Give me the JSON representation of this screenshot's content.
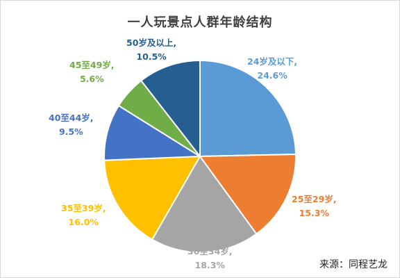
{
  "chart_data": {
    "type": "pie",
    "title": "一人玩景点人群年龄结构",
    "slices": [
      {
        "label": "24岁及以下,",
        "value_label": "24.6%",
        "value": 24.6,
        "color": "#5B9BD5"
      },
      {
        "label": "25至29岁,",
        "value_label": "15.3%",
        "value": 15.3,
        "color": "#ED7D31"
      },
      {
        "label": "30至34岁,",
        "value_label": "18.3%",
        "value": 18.3,
        "color": "#A5A5A5"
      },
      {
        "label": "35至39岁,",
        "value_label": "16.0%",
        "value": 16.0,
        "color": "#FFC000"
      },
      {
        "label": "40至44岁,",
        "value_label": "9.5%",
        "value": 9.5,
        "color": "#4472C4"
      },
      {
        "label": "45至49岁,",
        "value_label": "5.6%",
        "value": 5.6,
        "color": "#70AD47"
      },
      {
        "label": "50岁及以上,",
        "value_label": "10.5%",
        "value": 10.5,
        "color": "#255E91"
      }
    ],
    "legend": "none"
  },
  "source": "来源：同程艺龙"
}
